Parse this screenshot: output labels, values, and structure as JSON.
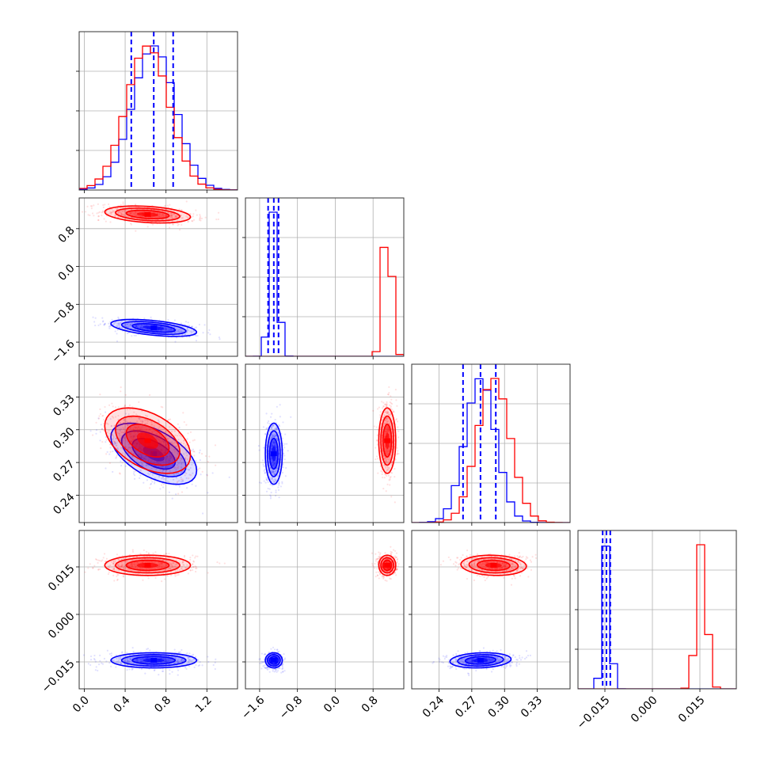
{
  "chart_data": {
    "type": "corner",
    "title": "",
    "parameters": 4,
    "ranges": [
      [
        -0.05,
        1.5
      ],
      [
        -1.9,
        1.45
      ],
      [
        0.215,
        0.36
      ],
      [
        -0.0235,
        0.0265
      ]
    ],
    "tick_labels": [
      [
        "0.0",
        "0.4",
        "0.8",
        "1.2"
      ],
      [
        "−1.6",
        "−0.8",
        "0.0",
        "0.8"
      ],
      [
        "0.24",
        "0.27",
        "0.30",
        "0.33"
      ],
      [
        "−0.015",
        "0.000",
        "0.015"
      ]
    ],
    "ticks": [
      [
        0.0,
        0.4,
        0.8,
        1.2
      ],
      [
        -1.6,
        -0.8,
        0.0,
        0.8
      ],
      [
        0.24,
        0.27,
        0.3,
        0.33
      ],
      [
        -0.015,
        0.0,
        0.015
      ]
    ],
    "grid": true,
    "series": [
      {
        "color": "#0000ff",
        "means": [
          0.68,
          -1.3,
          0.278,
          -0.0145
        ],
        "sds": [
          0.21,
          0.09,
          0.014,
          0.0012
        ],
        "quantiles": [
          [
            0.46,
            0.68,
            0.87
          ],
          [
            -1.42,
            -1.3,
            -1.2
          ],
          [
            0.262,
            0.278,
            0.292
          ],
          [
            -0.0157,
            -0.0145,
            -0.0133
          ]
        ],
        "correlations": {
          "1-0": -0.5,
          "2-0": -0.55,
          "2-1": 0.0,
          "3-0": 0.0,
          "3-1": 0.0,
          "3-2": 0.15
        }
      },
      {
        "color": "#ff0000",
        "means": [
          0.62,
          1.1,
          0.29,
          0.0155
        ],
        "sds": [
          0.21,
          0.09,
          0.015,
          0.0016
        ],
        "correlations": {
          "1-0": -0.3,
          "2-0": -0.45,
          "2-1": 0.0,
          "3-0": 0.0,
          "3-1": 0.0,
          "3-2": -0.1
        }
      }
    ]
  }
}
